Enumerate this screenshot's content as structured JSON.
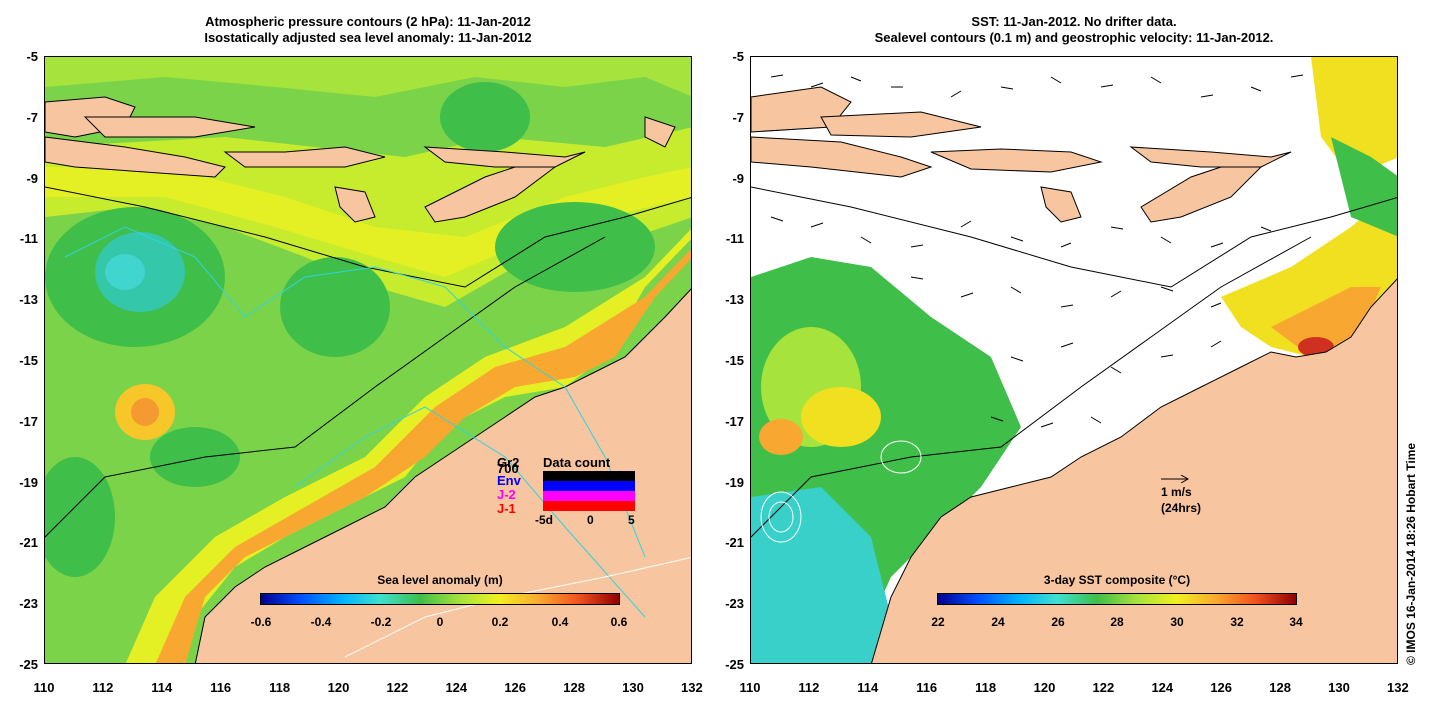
{
  "left_panel": {
    "title_line1": "Atmospheric pressure contours (2 hPa): 11-Jan-2012",
    "title_line2": "Isostatically adjusted sea level anomaly: 11-Jan-2012",
    "colorbar_label": "Sea level anomaly (m)",
    "colorbar_ticks": [
      "-0.6",
      "-0.4",
      "-0.2",
      "0",
      "0.2",
      "0.4",
      "0.6"
    ],
    "inset": {
      "title": "Data count",
      "sources": [
        "Gr2",
        "700",
        "Env",
        "J-2",
        "J-1"
      ],
      "x_ticks": [
        "-5d",
        "0",
        "5"
      ]
    }
  },
  "right_panel": {
    "title_line1": "SST: 11-Jan-2012. No drifter data.",
    "title_line2": "Sealevel contours (0.1 m) and geostrophic velocity: 11-Jan-2012.",
    "colorbar_label": "3-day SST composite (°C)",
    "colorbar_ticks": [
      "22",
      "24",
      "26",
      "28",
      "30",
      "32",
      "34"
    ],
    "scale_arrow_label1": "1 m/s",
    "scale_arrow_label2": "(24hrs)"
  },
  "axes": {
    "y_ticks": [
      "-5",
      "-7",
      "-9",
      "-11",
      "-13",
      "-15",
      "-17",
      "-19",
      "-21",
      "-23",
      "-25"
    ],
    "x_ticks": [
      "110",
      "112",
      "114",
      "116",
      "118",
      "120",
      "122",
      "124",
      "126",
      "128",
      "130",
      "132"
    ]
  },
  "credit": "© IMOS 16-Jan-2014 18:26 Hobart Time",
  "colors": {
    "land": "#f7c59f",
    "sla_green": "#7bd34a",
    "sla_yellow": "#d9ef2a",
    "sst_cyan": "#38d0c8"
  }
}
